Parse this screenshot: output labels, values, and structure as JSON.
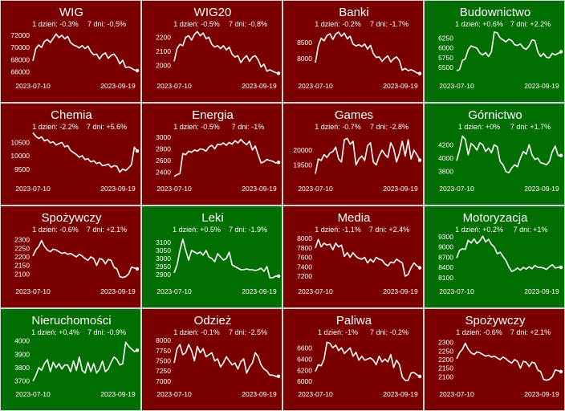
{
  "colors": {
    "down": "#7a0000",
    "up": "#006e00",
    "line": "#ffffff",
    "border": "#d6d6d6"
  },
  "chart_data": [
    {
      "type": "line",
      "title": "WIG",
      "day_change": "1 dzień: -0.3%",
      "week_change": "7 dni: -0.5%",
      "direction": "down",
      "x_start": "2023-07-10",
      "x_end": "2023-09-19",
      "yticks": [
        "72000",
        "70000",
        "68000",
        "66000"
      ],
      "ytick_values": [
        72000,
        70000,
        68000,
        66000
      ],
      "ylim": [
        65400,
        73300
      ],
      "values": [
        67800,
        69800,
        70400,
        70000,
        71000,
        71300,
        70800,
        71500,
        72200,
        71600,
        72000,
        71400,
        71800,
        70800,
        70400,
        70200,
        69900,
        70300,
        69800,
        70200,
        69300,
        68800,
        68900,
        68100,
        68800,
        69100,
        68200,
        68700,
        68900,
        68300,
        67300,
        67900,
        66700,
        66800,
        66600,
        66300,
        66200
      ]
    },
    {
      "type": "line",
      "title": "WIG20",
      "day_change": "1 dzień: -0.5%",
      "week_change": "7 dni: -0.8%",
      "direction": "down",
      "x_start": "2023-07-10",
      "x_end": "2023-09-19",
      "yticks": [
        "2200",
        "2100",
        "2000"
      ],
      "ytick_values": [
        2200,
        2100,
        2000
      ],
      "ylim": [
        1930,
        2270
      ],
      "values": [
        2030,
        2120,
        2150,
        2140,
        2200,
        2210,
        2180,
        2220,
        2240,
        2210,
        2230,
        2190,
        2200,
        2150,
        2130,
        2140,
        2120,
        2140,
        2110,
        2130,
        2080,
        2060,
        2070,
        2020,
        2050,
        2070,
        2030,
        2060,
        2070,
        2040,
        1990,
        2010,
        1960,
        1970,
        1960,
        1950,
        1945
      ]
    },
    {
      "type": "line",
      "title": "Banki",
      "day_change": "1 dzień: -0.2%",
      "week_change": "7 dni: -1.7%",
      "direction": "down",
      "x_start": "2023-07-10",
      "x_end": "2023-09-19",
      "yticks": [
        "8500",
        "8000"
      ],
      "ytick_values": [
        8500,
        8000
      ],
      "ylim": [
        7480,
        8980
      ],
      "values": [
        7880,
        8400,
        8640,
        8560,
        8720,
        8780,
        8600,
        8770,
        8830,
        8700,
        8800,
        8620,
        8700,
        8460,
        8400,
        8440,
        8380,
        8460,
        8300,
        8420,
        8160,
        8040,
        8060,
        7920,
        8020,
        8090,
        7900,
        8000,
        8060,
        7940,
        7640,
        7700,
        7630,
        7660,
        7620,
        7560,
        7540
      ]
    },
    {
      "type": "line",
      "title": "Budownictwo",
      "day_change": "1 dzień: +0.6%",
      "week_change": "7 dni: +2.2%",
      "direction": "up",
      "x_start": "2023-07-10",
      "x_end": "2023-09-19",
      "yticks": [
        "6250",
        "6000",
        "5750",
        "5500"
      ],
      "ytick_values": [
        6250,
        6000,
        5750,
        5500
      ],
      "ylim": [
        5300,
        6520
      ],
      "values": [
        5420,
        5450,
        5680,
        5720,
        5950,
        6050,
        6020,
        5990,
        5870,
        5820,
        5880,
        5780,
        5900,
        6400,
        6380,
        6250,
        6200,
        6150,
        6220,
        6180,
        6080,
        6060,
        6100,
        6000,
        5960,
        6050,
        6200,
        6180,
        5900,
        5780,
        5860,
        5760,
        5750,
        5860,
        5820,
        5860,
        5900
      ]
    },
    {
      "type": "line",
      "title": "Chemia",
      "day_change": "1 dzień: -2.2%",
      "week_change": "7 dni: +5.6%",
      "direction": "down",
      "x_start": "2023-07-10",
      "x_end": "2023-09-19",
      "yticks": [
        "10500",
        "10000",
        "9500"
      ],
      "ytick_values": [
        10500,
        10000,
        9500
      ],
      "ylim": [
        9180,
        10950
      ],
      "values": [
        10850,
        10720,
        10640,
        10700,
        10550,
        10600,
        10480,
        10520,
        10400,
        10450,
        10500,
        10330,
        10380,
        10200,
        10120,
        10050,
        9950,
        10010,
        9860,
        9900,
        9780,
        9820,
        9720,
        9760,
        9640,
        9660,
        9700,
        9580,
        9640,
        9620,
        9400,
        9520,
        9460,
        9560,
        9680,
        10320,
        10180
      ]
    },
    {
      "type": "line",
      "title": "Energia",
      "day_change": "1 dzień: -0.5%",
      "week_change": "7 dni: -1%",
      "direction": "down",
      "x_start": "2023-07-10",
      "x_end": "2023-09-19",
      "yticks": [
        "3000",
        "2800",
        "2600",
        "2400"
      ],
      "ytick_values": [
        3000,
        2800,
        2600,
        2400
      ],
      "ylim": [
        2300,
        3120
      ],
      "values": [
        2330,
        2360,
        2380,
        2720,
        2700,
        2760,
        2740,
        2780,
        2760,
        2800,
        2790,
        2760,
        2830,
        2860,
        2800,
        2880,
        2870,
        2900,
        2860,
        2910,
        2880,
        2940,
        2900,
        2960,
        2910,
        2870,
        2930,
        2780,
        2850,
        2700,
        2560,
        2580,
        2620,
        2600,
        2590,
        2560,
        2570
      ]
    },
    {
      "type": "line",
      "title": "Games",
      "day_change": "1 dzień: -0.7%",
      "week_change": "7 dni: -2.8%",
      "direction": "down",
      "x_start": "2023-07-10",
      "x_end": "2023-09-19",
      "yticks": [
        "20000",
        "19500"
      ],
      "ytick_values": [
        20000,
        19500
      ],
      "ylim": [
        19050,
        20680
      ],
      "values": [
        19200,
        19700,
        19650,
        19850,
        19750,
        19900,
        19950,
        20100,
        19700,
        19600,
        20350,
        20400,
        20200,
        20300,
        19500,
        19700,
        19800,
        19650,
        20150,
        20250,
        19600,
        19500,
        19800,
        20000,
        19850,
        19750,
        20250,
        20050,
        19600,
        19900,
        20300,
        19800,
        20350,
        19700,
        20000,
        19850,
        19660
      ]
    },
    {
      "type": "line",
      "title": "Górnictwo",
      "day_change": "1 dzień: +0%",
      "week_change": "7 dni: +1.7%",
      "direction": "up",
      "x_start": "2023-07-10",
      "x_end": "2023-09-19",
      "yticks": [
        "4200",
        "4000",
        "3800"
      ],
      "ytick_values": [
        4200,
        4000,
        3800
      ],
      "ylim": [
        3700,
        4420
      ],
      "values": [
        3960,
        4120,
        4330,
        4280,
        4050,
        4220,
        4180,
        4120,
        4230,
        4200,
        4100,
        4150,
        4080,
        4200,
        4170,
        3950,
        3900,
        3800,
        3780,
        3850,
        3900,
        3870,
        4000,
        4100,
        4060,
        4200,
        4050,
        3980,
        4000,
        3930,
        3920,
        3900,
        3950,
        4100,
        4180,
        4040,
        4040
      ]
    },
    {
      "type": "line",
      "title": "Spożywczy",
      "day_change": "1 dzień: -0.6%",
      "week_change": "7 dni: +2.1%",
      "direction": "down",
      "x_start": "2023-07-10",
      "x_end": "2023-09-19",
      "yticks": [
        "2300",
        "2250",
        "2200",
        "2150",
        "2100"
      ],
      "ytick_values": [
        2300,
        2250,
        2200,
        2150,
        2100
      ],
      "ylim": [
        2060,
        2340
      ],
      "values": [
        2205,
        2240,
        2260,
        2295,
        2260,
        2240,
        2230,
        2245,
        2240,
        2230,
        2220,
        2225,
        2215,
        2220,
        2210,
        2200,
        2215,
        2205,
        2190,
        2180,
        2200,
        2190,
        2150,
        2190,
        2185,
        2160,
        2185,
        2180,
        2140,
        2130,
        2085,
        2080,
        2085,
        2100,
        2140,
        2135,
        2130
      ]
    },
    {
      "type": "line",
      "title": "Leki",
      "day_change": "1 dzień: +0.5%",
      "week_change": "7 dni: -1.9%",
      "direction": "up",
      "x_start": "2023-07-10",
      "x_end": "2023-09-19",
      "yticks": [
        "3100",
        "3050",
        "3000",
        "2950",
        "2900"
      ],
      "ytick_values": [
        3100,
        3050,
        3000,
        2950,
        2900
      ],
      "ylim": [
        2860,
        3160
      ],
      "values": [
        2910,
        2960,
        3050,
        3120,
        3050,
        2990,
        3050,
        3040,
        3030,
        3040,
        3020,
        3050,
        3010,
        3000,
        2980,
        3030,
        3010,
        2990,
        3000,
        3040,
        2960,
        2950,
        2940,
        2930,
        2930,
        2935,
        2930,
        2930,
        2925,
        2930,
        2940,
        2920,
        2950,
        2880,
        2880,
        2890,
        2890
      ]
    },
    {
      "type": "line",
      "title": "Media",
      "day_change": "1 dzień: -1.1%",
      "week_change": "7 dni: +2.4%",
      "direction": "down",
      "x_start": "2023-07-10",
      "x_end": "2023-09-19",
      "yticks": [
        "8000",
        "7800",
        "7600",
        "7400",
        "7200"
      ],
      "ytick_values": [
        8000,
        7800,
        7600,
        7400,
        7200
      ],
      "ylim": [
        7100,
        8120
      ],
      "values": [
        7800,
        7980,
        7820,
        7900,
        7860,
        7880,
        7760,
        7900,
        7820,
        7860,
        7620,
        7700,
        7600,
        7700,
        7620,
        7580,
        7560,
        7600,
        7480,
        7560,
        7500,
        7600,
        7560,
        7540,
        7460,
        7420,
        7500,
        7480,
        7560,
        7520,
        7480,
        7200,
        7240,
        7380,
        7480,
        7420,
        7380
      ]
    },
    {
      "type": "line",
      "title": "Motoryzacja",
      "day_change": "1 dzień: +0.2%",
      "week_change": "7 dni: +1%",
      "direction": "up",
      "x_start": "2023-07-10",
      "x_end": "2023-09-19",
      "yticks": [
        "9300",
        "9000",
        "8700",
        "8400",
        "8100"
      ],
      "ytick_values": [
        9300,
        9000,
        8700,
        8400,
        8100
      ],
      "ylim": [
        8000,
        9420
      ],
      "values": [
        8680,
        8900,
        8950,
        8930,
        9200,
        9120,
        9240,
        9100,
        9180,
        9320,
        9150,
        9230,
        9080,
        9000,
        8800,
        8850,
        8720,
        8600,
        8420,
        8280,
        8320,
        8380,
        8320,
        8400,
        8350,
        8420,
        8360,
        8460,
        8400,
        8400,
        8380,
        8340,
        8420,
        8480,
        8380,
        8400,
        8400
      ]
    },
    {
      "type": "line",
      "title": "Nieruchomości",
      "day_change": "1 dzień: +0.4%",
      "week_change": "7 dni: -0.9%",
      "direction": "up",
      "x_start": "2023-07-10",
      "x_end": "2023-09-19",
      "yticks": [
        "4000",
        "3900",
        "3800",
        "3700"
      ],
      "ytick_values": [
        4000,
        3900,
        3800,
        3700
      ],
      "ylim": [
        3680,
        4040
      ],
      "values": [
        3700,
        3740,
        3800,
        3780,
        3830,
        3860,
        3770,
        3840,
        3800,
        3830,
        3790,
        3820,
        3820,
        3770,
        3850,
        3780,
        3880,
        3780,
        3760,
        3840,
        3770,
        3830,
        3760,
        3790,
        3850,
        3770,
        3790,
        3840,
        3880,
        3860,
        3820,
        3830,
        3990,
        3960,
        3940,
        3920,
        3930
      ]
    },
    {
      "type": "line",
      "title": "Odzież",
      "day_change": "1 dzień: -0.1%",
      "week_change": "7 dni: -2.5%",
      "direction": "down",
      "x_start": "2023-07-10",
      "x_end": "2023-09-19",
      "yticks": [
        "8000",
        "7750",
        "7500",
        "7250",
        "7000"
      ],
      "ytick_values": [
        8000,
        7750,
        7500,
        7250,
        7000
      ],
      "ylim": [
        6940,
        8120
      ],
      "values": [
        7450,
        7800,
        7900,
        7650,
        7700,
        7900,
        7750,
        7500,
        7850,
        7700,
        7800,
        7600,
        7650,
        7700,
        7500,
        7550,
        7350,
        7450,
        7600,
        7500,
        7400,
        7450,
        7300,
        7480,
        7550,
        7200,
        7350,
        7450,
        7700,
        7600,
        7400,
        7300,
        7250,
        7150,
        7150,
        7120,
        7120
      ]
    },
    {
      "type": "line",
      "title": "Paliwa",
      "day_change": "1 dzień: -1%",
      "week_change": "7 dni: -0.2%",
      "direction": "down",
      "x_start": "2023-07-10",
      "x_end": "2023-09-19",
      "yticks": [
        "6600",
        "6400",
        "6200",
        "6000"
      ],
      "ytick_values": [
        6600,
        6400,
        6200,
        6000
      ],
      "ylim": [
        5960,
        6820
      ],
      "values": [
        6180,
        6300,
        6280,
        6400,
        6700,
        6680,
        6600,
        6650,
        6550,
        6600,
        6500,
        6550,
        6600,
        6450,
        6520,
        6380,
        6450,
        6380,
        6400,
        6420,
        6380,
        6300,
        6450,
        6350,
        6400,
        6350,
        6480,
        6250,
        6380,
        6300,
        6080,
        6020,
        6020,
        6150,
        6160,
        6120,
        6090
      ]
    },
    {
      "type": "line",
      "title": "Spożywczy",
      "day_change": "1 dzień: -0.6%",
      "week_change": "7 dni: +2.1%",
      "direction": "down",
      "x_start": "2023-07-10",
      "x_end": "2023-09-19",
      "yticks": [
        "2300",
        "2250",
        "2200",
        "2150",
        "2100"
      ],
      "ytick_values": [
        2300,
        2250,
        2200,
        2150,
        2100
      ],
      "ylim": [
        2060,
        2340
      ],
      "values": [
        2205,
        2240,
        2260,
        2295,
        2260,
        2240,
        2230,
        2245,
        2240,
        2230,
        2220,
        2225,
        2215,
        2220,
        2210,
        2200,
        2215,
        2205,
        2190,
        2180,
        2200,
        2190,
        2150,
        2190,
        2185,
        2160,
        2185,
        2180,
        2140,
        2130,
        2085,
        2080,
        2085,
        2100,
        2140,
        2135,
        2130
      ]
    }
  ]
}
